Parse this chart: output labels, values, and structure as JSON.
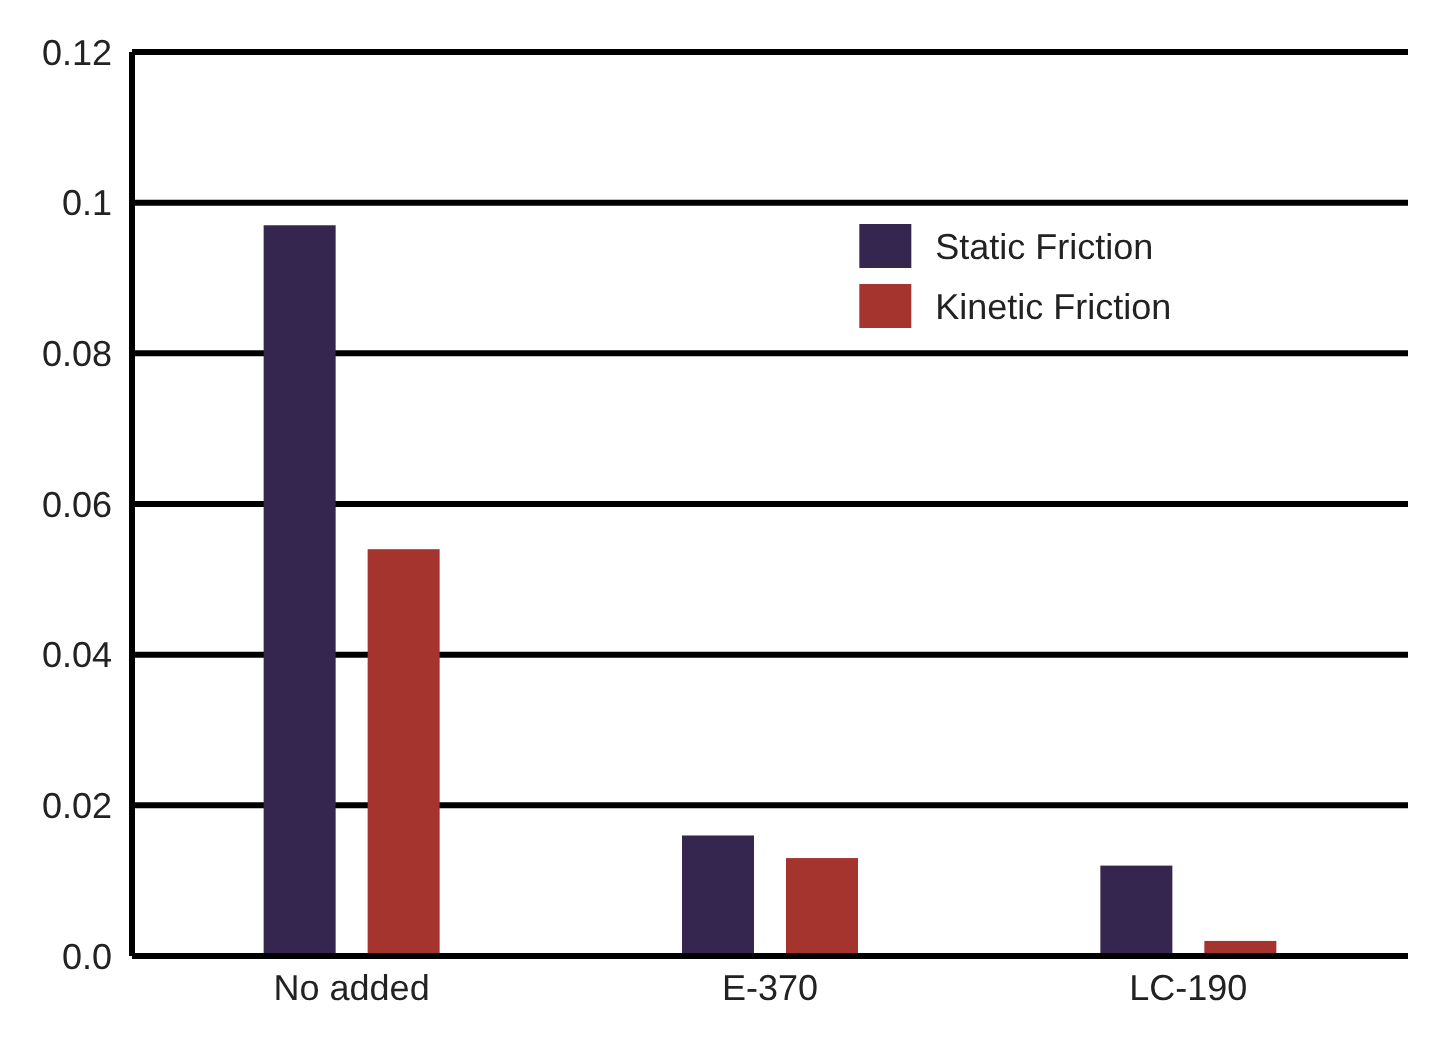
{
  "chart_data": {
    "type": "bar",
    "categories": [
      "No added",
      "E-370",
      "LC-190"
    ],
    "series": [
      {
        "name": "Static Friction",
        "color": "#35264f",
        "values": [
          0.097,
          0.016,
          0.012
        ]
      },
      {
        "name": "Kinetic Friction",
        "color": "#a5342f",
        "values": [
          0.054,
          0.013,
          0.002
        ]
      }
    ],
    "ylim": [
      0,
      0.12
    ],
    "yticks": [
      {
        "value": 0,
        "label": "0.0"
      },
      0.02,
      0.04,
      0.06,
      0.08,
      0.1,
      0.12
    ],
    "grid": "y",
    "legend": "top right"
  }
}
